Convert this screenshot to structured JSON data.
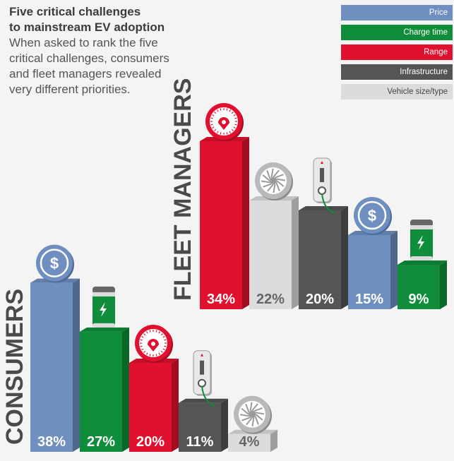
{
  "header": {
    "title_line1": "Five critical challenges",
    "title_line2": "to mainstream EV adoption",
    "subtitle_line1": "When asked to rank the five",
    "subtitle_line2": "critical challenges, consumers",
    "subtitle_line3": "and fleet managers revealed",
    "subtitle_line4": "very different priorities."
  },
  "legend": [
    {
      "label": "Price",
      "color": "#6e8fbf",
      "icon": "dollar-icon"
    },
    {
      "label": "Charge time",
      "color": "#0f8d3a",
      "icon": "battery-icon"
    },
    {
      "label": "Range",
      "color": "#e1102e",
      "icon": "speedometer-icon"
    },
    {
      "label": "Infrastructure",
      "color": "#555555",
      "icon": "charger-icon"
    },
    {
      "label": "Vehicle size/type",
      "color": "#dcdcdc",
      "icon": "wheel-icon"
    }
  ],
  "chart_data": [
    {
      "type": "bar",
      "title": "FLEET MANAGERS",
      "categories": [
        "Range",
        "Vehicle size/type",
        "Infrastructure",
        "Price",
        "Charge time"
      ],
      "values": [
        34,
        22,
        20,
        15,
        9
      ],
      "labels": [
        "34%",
        "22%",
        "20%",
        "15%",
        "9%"
      ]
    },
    {
      "type": "bar",
      "title": "CONSUMERS",
      "categories": [
        "Price",
        "Charge time",
        "Range",
        "Infrastructure",
        "Vehicle size/type"
      ],
      "values": [
        38,
        27,
        20,
        11,
        4
      ],
      "labels": [
        "38%",
        "27%",
        "20%",
        "11%",
        "4%"
      ]
    }
  ]
}
